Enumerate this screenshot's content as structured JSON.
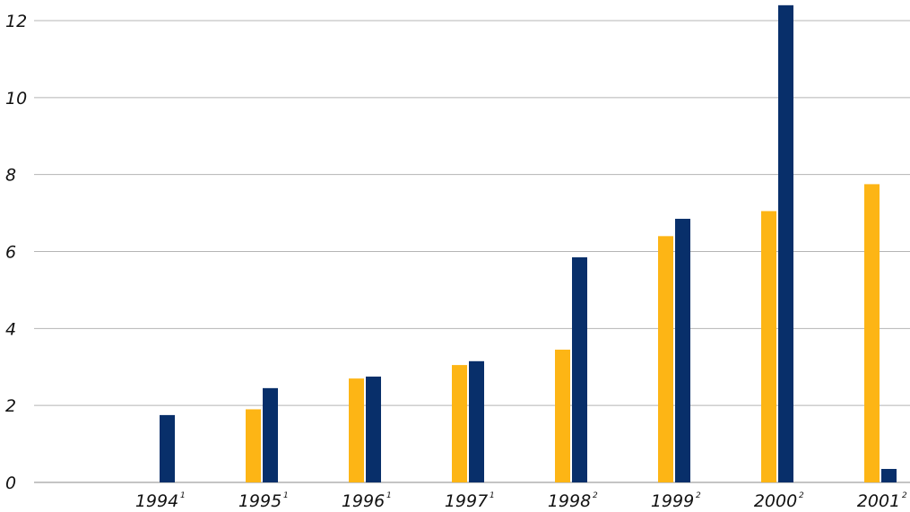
{
  "chart_data": {
    "type": "bar",
    "title": "",
    "xlabel": "",
    "ylabel": "",
    "ylim": [
      0,
      12
    ],
    "yticks": [
      "0",
      "2",
      "4",
      "6",
      "8",
      "10",
      "12"
    ],
    "grid": true,
    "legend": "none",
    "categories": [
      {
        "label": "1994",
        "sup": "1"
      },
      {
        "label": "1995",
        "sup": "1"
      },
      {
        "label": "1996",
        "sup": "1"
      },
      {
        "label": "1997",
        "sup": "1"
      },
      {
        "label": "1998",
        "sup": "2"
      },
      {
        "label": "1999",
        "sup": "2"
      },
      {
        "label": "2000",
        "sup": "2"
      },
      {
        "label": "2001",
        "sup": "2"
      }
    ],
    "series": [
      {
        "color": "#FDB515",
        "values": [
          null,
          1.9,
          2.7,
          3.05,
          3.45,
          6.4,
          7.05,
          7.75
        ]
      },
      {
        "color": "#082F6A",
        "values": [
          1.75,
          2.45,
          2.75,
          3.15,
          5.85,
          6.85,
          12.4,
          0.35
        ]
      }
    ]
  }
}
